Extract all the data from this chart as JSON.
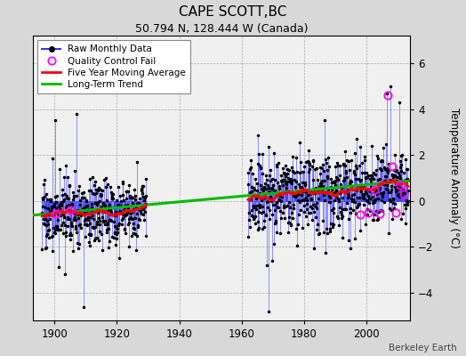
{
  "title": "CAPE SCOTT,BC",
  "subtitle": "50.794 N, 128.444 W (Canada)",
  "ylabel": "Temperature Anomaly (°C)",
  "credit": "Berkeley Earth",
  "xlim": [
    1893,
    2014
  ],
  "ylim": [
    -5.2,
    7.2
  ],
  "yticks": [
    -4,
    -2,
    0,
    2,
    4,
    6
  ],
  "xticks": [
    1900,
    1920,
    1940,
    1960,
    1980,
    2000
  ],
  "bg_color": "#d8d8d8",
  "plot_bg_color": "#f0f0f0",
  "raw_line_color": "#3333ff",
  "raw_dot_color": "#000000",
  "qc_color": "#ff00ff",
  "moving_avg_color": "#ff0000",
  "trend_color": "#00bb00",
  "seed": 17,
  "early_start": 1896.0,
  "early_end": 1929.5,
  "late_start": 1962.0,
  "late_end": 2013.5,
  "trend_x": [
    1893,
    2014
  ],
  "trend_y": [
    -0.62,
    0.88
  ],
  "qc_years": [
    1900.5,
    1905.2,
    1998.0,
    2000.5,
    2002.7,
    2004.3,
    2006.8,
    2008.2,
    2009.5,
    2010.8,
    2012.1
  ],
  "qc_vals": [
    -0.55,
    -0.4,
    -0.6,
    -0.5,
    0.5,
    -0.55,
    4.6,
    1.5,
    -0.5,
    0.7,
    0.3
  ]
}
